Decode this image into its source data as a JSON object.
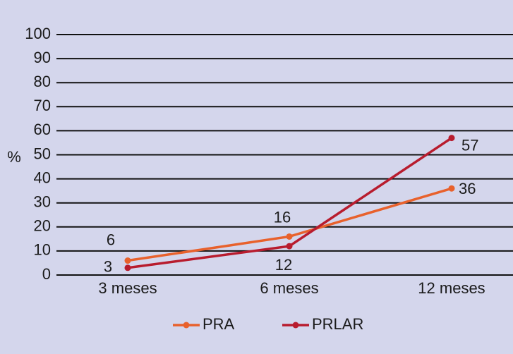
{
  "chart_data": {
    "type": "line",
    "y_label": "%",
    "categories": [
      "3 meses",
      "6 meses",
      "12 meses"
    ],
    "series": [
      {
        "name": "PRA",
        "color": "#e8612c",
        "values": [
          6,
          16,
          36
        ]
      },
      {
        "name": "PRLAR",
        "color": "#b81c2e",
        "values": [
          3,
          12,
          57
        ]
      }
    ],
    "ylim": [
      0,
      100
    ],
    "yticks": [
      0,
      10,
      20,
      30,
      40,
      50,
      60,
      70,
      80,
      90,
      100
    ],
    "grid": true
  }
}
